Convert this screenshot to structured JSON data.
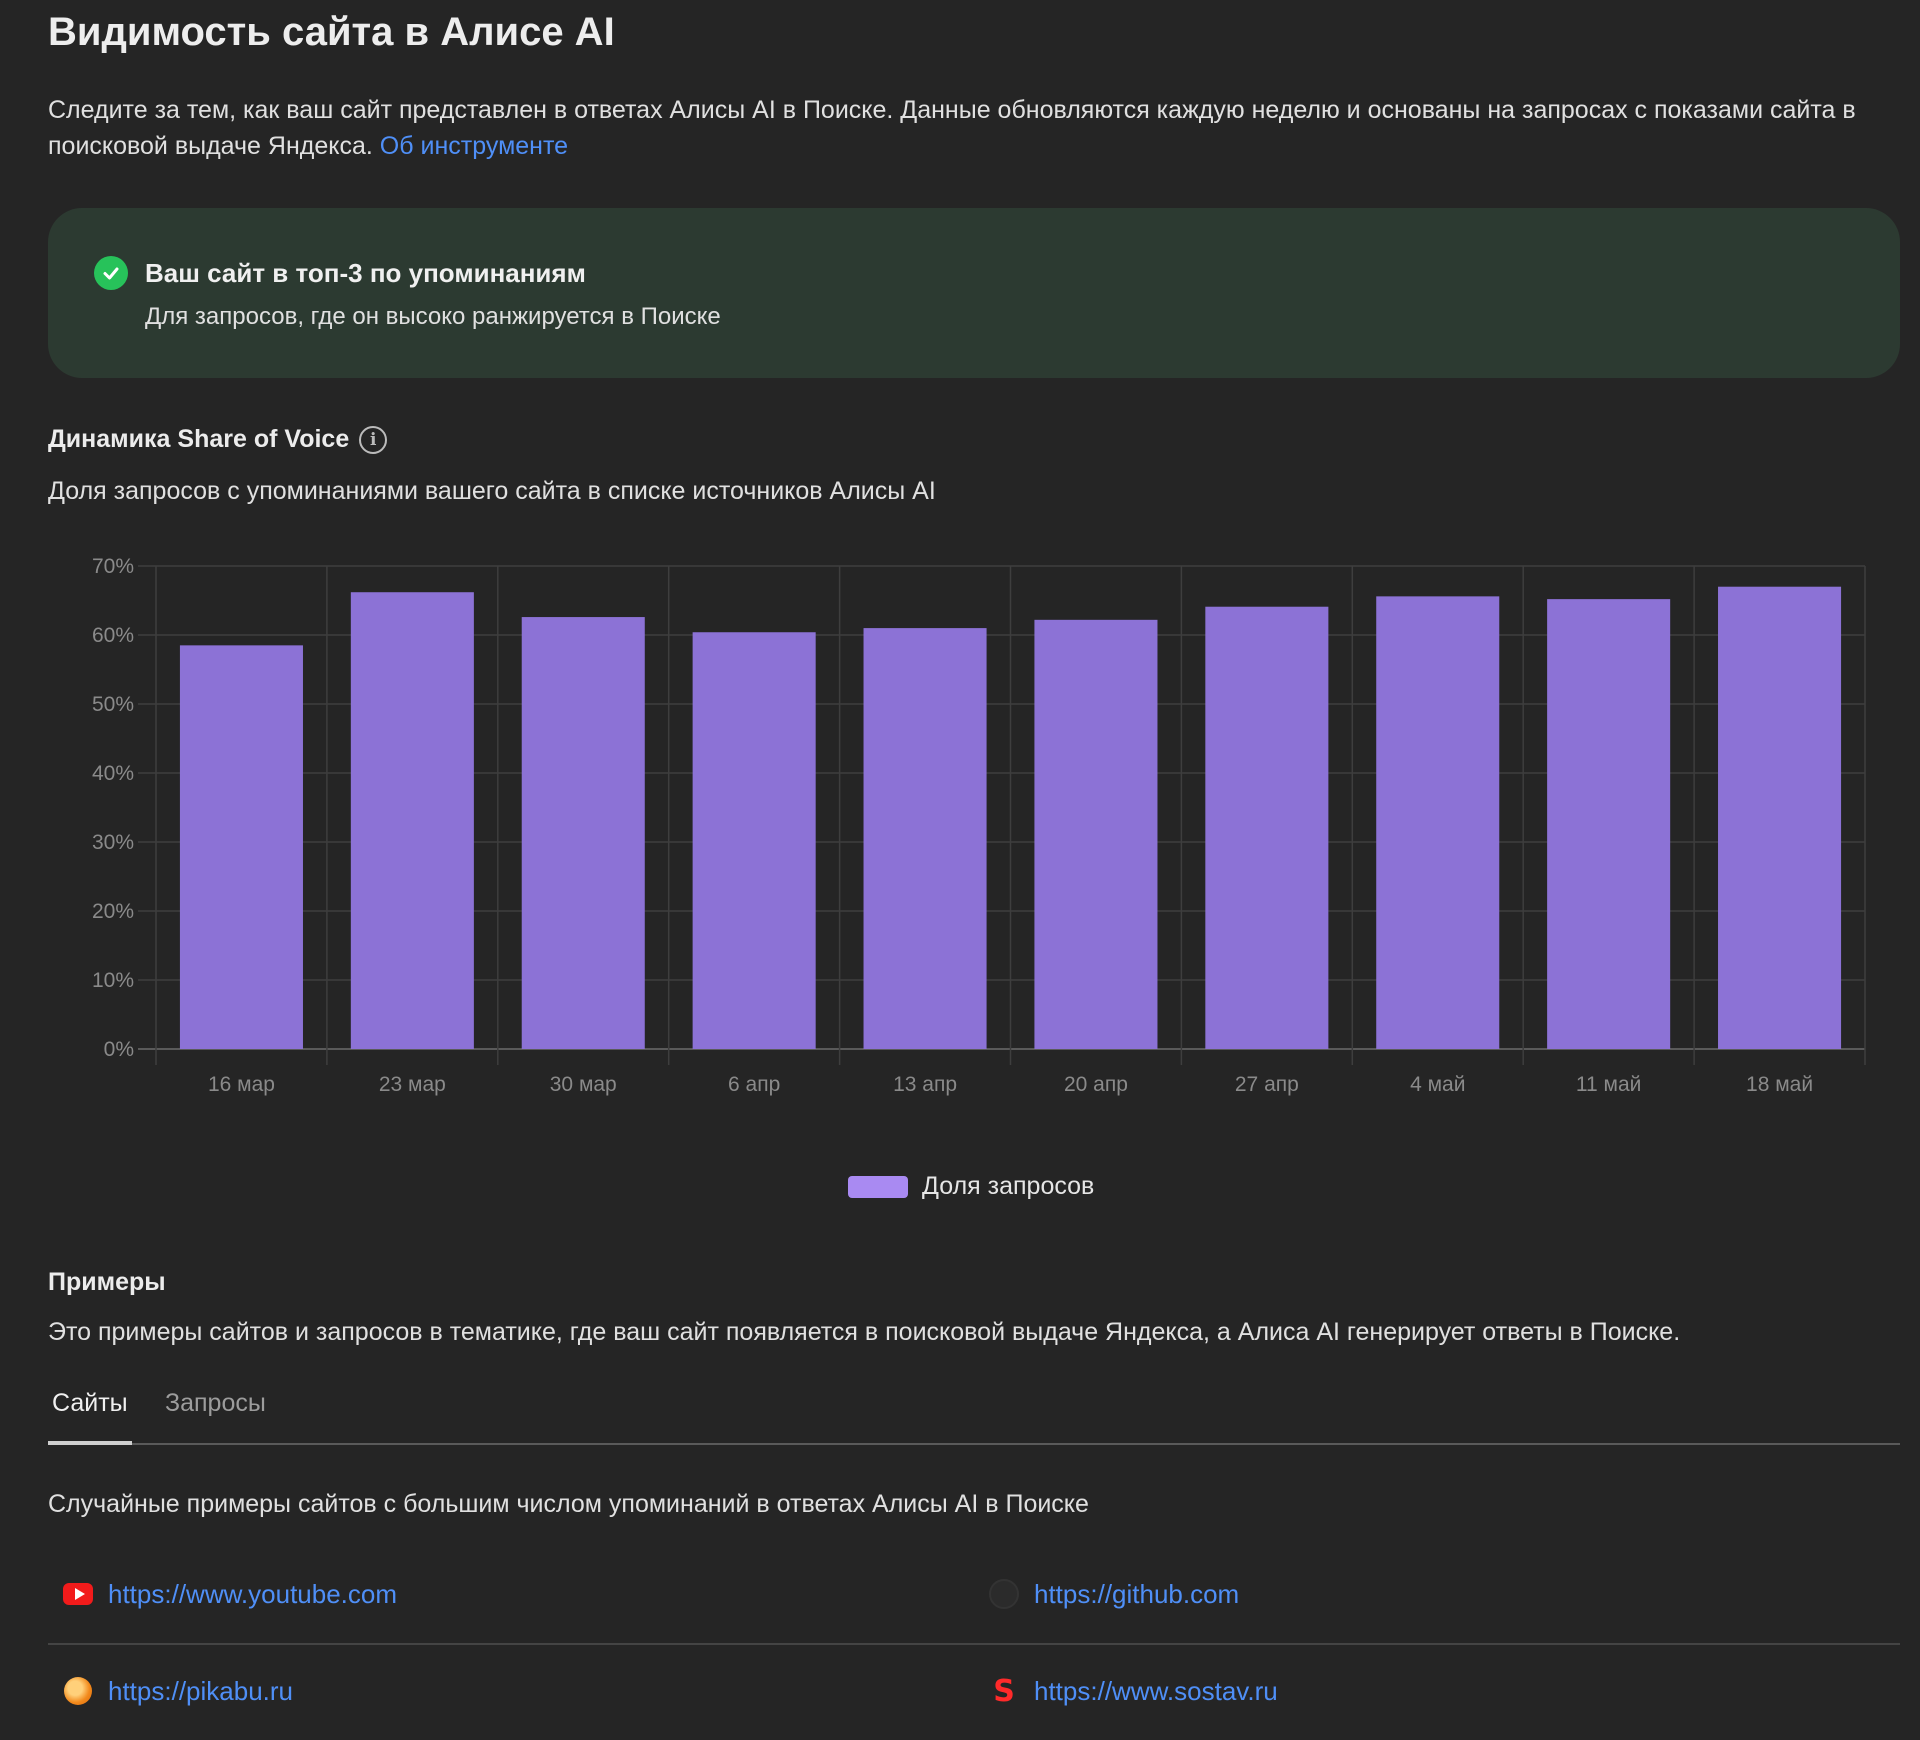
{
  "header": {
    "title": "Видимость сайта в Алисе AI",
    "intro": "Следите за тем, как ваш сайт представлен в ответах Алисы AI в Поиске. Данные обновляются каждую неделю и основаны на запросах с показами сайта в поисковой выдаче Яндекса.",
    "about_link": "Об инструменте"
  },
  "status": {
    "title": "Ваш сайт в топ-3 по упоминаниям",
    "subtitle": "Для запросов, где он высоко ранжируется в Поиске",
    "icon": "check-circle-icon",
    "color": "#27c25a"
  },
  "sov": {
    "title": "Динамика Share of Voice",
    "info_icon": "info-icon",
    "subtitle": "Доля запросов с упоминаниями вашего сайта в списке источников Алисы AI"
  },
  "chart_data": {
    "type": "bar",
    "categories": [
      "16 мар",
      "23 мар",
      "30 мар",
      "6 апр",
      "13 апр",
      "20 апр",
      "27 апр",
      "4 май",
      "11 май",
      "18 май"
    ],
    "series": [
      {
        "name": "Доля запросов",
        "values": [
          58.5,
          66.2,
          62.6,
          60.4,
          61.0,
          62.2,
          64.1,
          65.6,
          65.2,
          67.0
        ]
      }
    ],
    "y_ticks": [
      "0%",
      "10%",
      "20%",
      "30%",
      "40%",
      "50%",
      "60%",
      "70%"
    ],
    "ylim": [
      0,
      70
    ],
    "grid": true,
    "legend": "bottom-center",
    "bar_color": "#8c72d6",
    "legend_color": "#a98af2"
  },
  "examples": {
    "title": "Примеры",
    "subtitle": "Это примеры сайтов и запросов в тематике, где ваш сайт появляется в поисковой выдаче Яндекса, а Алиса AI генерирует ответы в Поиске.",
    "tabs": [
      {
        "label": "Сайты",
        "active": true
      },
      {
        "label": "Запросы",
        "active": false
      }
    ],
    "sites_subtitle": "Случайные примеры сайтов с большим числом упоминаний в ответах Алисы AI в Поиске",
    "sites": [
      {
        "url": "https://www.youtube.com",
        "icon": "youtube-icon"
      },
      {
        "url": "https://github.com",
        "icon": "github-icon"
      },
      {
        "url": "https://pikabu.ru",
        "icon": "pikabu-icon"
      },
      {
        "url": "https://www.sostav.ru",
        "icon": "sostav-icon"
      }
    ]
  }
}
